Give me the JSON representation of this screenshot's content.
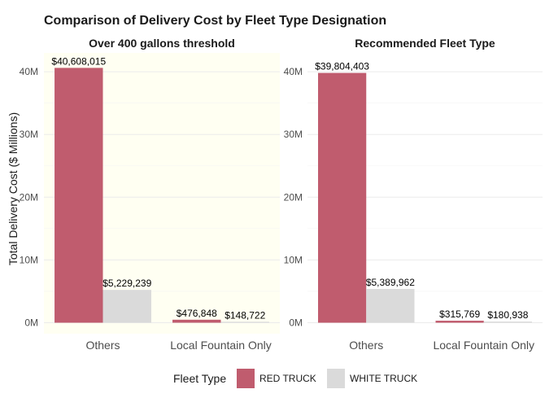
{
  "chart_data": {
    "type": "bar",
    "title": "Comparison of Delivery Cost by Fleet Type Designation",
    "ylabel": "Total Delivery Cost ($ Millions)",
    "xlabel": "",
    "ylim": [
      0,
      42000000
    ],
    "yticks": [
      0,
      10000000,
      20000000,
      30000000,
      40000000
    ],
    "ytick_labels": [
      "0M",
      "10M",
      "20M",
      "30M",
      "40M"
    ],
    "categories": [
      "Others",
      "Local Fountain Only"
    ],
    "legend": {
      "title": "Fleet Type",
      "placement": "bottom",
      "entries": [
        {
          "name": "RED TRUCK",
          "color": "#c05c6e"
        },
        {
          "name": "WHITE TRUCK",
          "color": "#dadada"
        }
      ]
    },
    "facets": [
      {
        "title": "Over 400 gallons threshold",
        "background": "#fffff2",
        "series": [
          {
            "name": "RED TRUCK",
            "values": [
              40608015,
              476848
            ],
            "labels": [
              "$40,608,015",
              "$476,848"
            ]
          },
          {
            "name": "WHITE TRUCK",
            "values": [
              5229239,
              148722
            ],
            "labels": [
              "$5,229,239",
              "$148,722"
            ]
          }
        ]
      },
      {
        "title": "Recommended Fleet Type",
        "background": "#ffffff",
        "series": [
          {
            "name": "RED TRUCK",
            "values": [
              39804403,
              315769
            ],
            "labels": [
              "$39,804,403",
              "$315,769"
            ]
          },
          {
            "name": "WHITE TRUCK",
            "values": [
              5389962,
              180938
            ],
            "labels": [
              "$5,389,962",
              "$180,938"
            ]
          }
        ]
      }
    ]
  }
}
